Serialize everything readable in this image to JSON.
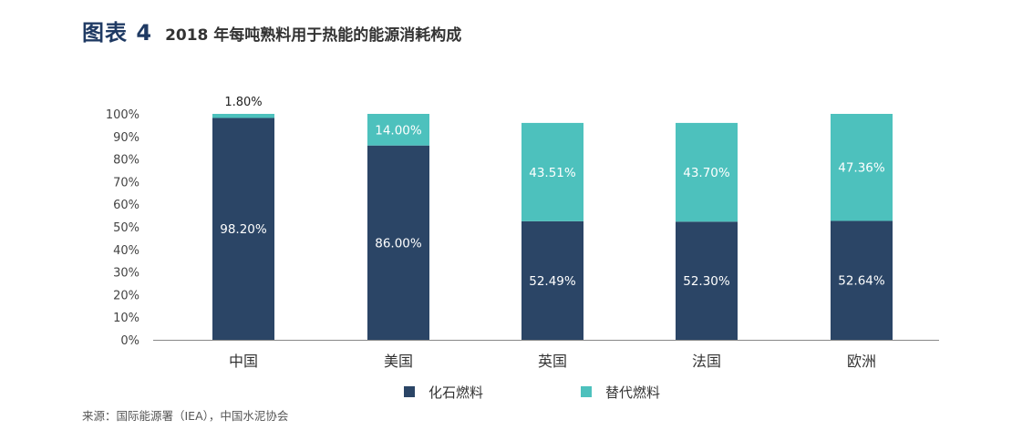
{
  "header": {
    "figure_label": "图表 4",
    "title": "2018 年每吨熟料用于热能的能源消耗构成"
  },
  "source": "来源：国际能源署（IEA），中国水泥协会",
  "colors": {
    "fossil": "#2b4566",
    "alternative": "#4dc1bd",
    "axis": "#888888"
  },
  "chart_data": {
    "type": "bar",
    "stacked": true,
    "title": "2018 年每吨熟料用于热能的能源消耗构成",
    "categories": [
      "中国",
      "美国",
      "英国",
      "法国",
      "欧洲"
    ],
    "series": [
      {
        "name": "化石燃料",
        "values": [
          98.2,
          86.0,
          52.49,
          52.3,
          52.64
        ]
      },
      {
        "name": "替代燃料",
        "values": [
          1.8,
          14.0,
          43.51,
          43.7,
          47.36
        ]
      }
    ],
    "value_labels": [
      [
        "98.20%",
        "86.00%",
        "52.49%",
        "52.30%",
        "52.64%"
      ],
      [
        "1.80%",
        "14.00%",
        "43.51%",
        "43.70%",
        "47.36%"
      ]
    ],
    "yticks": [
      "0%",
      "10%",
      "20%",
      "30%",
      "40%",
      "50%",
      "60%",
      "70%",
      "80%",
      "90%",
      "100%"
    ],
    "ylim": [
      0,
      100
    ],
    "grid": false,
    "legend_position": "bottom-center"
  }
}
